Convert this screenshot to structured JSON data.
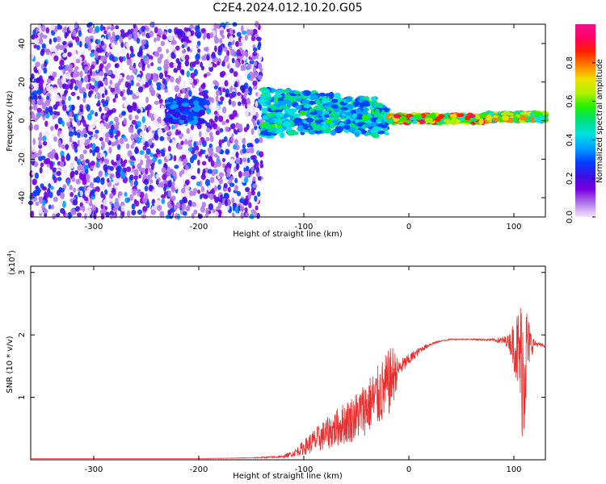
{
  "title": "C2E4.2024.012.10.20.G05",
  "chart_data": [
    {
      "type": "heatmap",
      "xlabel": "Height of straight line (km)",
      "ylabel": "Frequency (Hz)",
      "xlim": [
        -360,
        130
      ],
      "ylim": [
        -50,
        50
      ],
      "xticks": [
        -300,
        -200,
        -100,
        0,
        100
      ],
      "yticks": [
        -40,
        -20,
        0,
        20,
        40
      ],
      "colorbar": {
        "label": "Normalized spectral amplitude",
        "range": [
          0,
          1
        ],
        "ticks": [
          "0.0",
          "0.2",
          "0.4",
          "0.6",
          "0.8"
        ],
        "colormap": [
          "#f4e6fb",
          "#b27ae8",
          "#7a00e0",
          "#3c10e0",
          "#0040ff",
          "#00a0ff",
          "#00e0e0",
          "#00e080",
          "#20f000",
          "#b0f000",
          "#f0e000",
          "#ff8000",
          "#ff2000",
          "#ff0060",
          "#f0108c"
        ]
      },
      "regions": [
        {
          "x": [
            -360,
            -140
          ],
          "freq_range": [
            -50,
            50
          ],
          "amplitude": 0.12,
          "description": "noise"
        },
        {
          "x": [
            -230,
            -195
          ],
          "freq_center": 5,
          "amplitude": 0.35
        },
        {
          "x": [
            -140,
            -20
          ],
          "freq_center": 4,
          "amplitude": 0.5
        },
        {
          "x": [
            -20,
            75
          ],
          "freq_center": 1,
          "amplitude": 0.85
        },
        {
          "x": [
            75,
            130
          ],
          "freq_center": 2,
          "amplitude": 0.75
        }
      ],
      "grid": false
    },
    {
      "type": "line",
      "xlabel": "Height of straight line (km)",
      "ylabel": "SNR (10 * v/v)",
      "y_multiplier": "(x10",
      "y_multiplier_exp": "4",
      "y_multiplier_close": ")",
      "xlim": [
        -360,
        130
      ],
      "ylim": [
        0,
        3.1
      ],
      "xticks": [
        -300,
        -200,
        -100,
        0,
        100
      ],
      "yticks": [
        1,
        2,
        3
      ],
      "color": "#e83030",
      "series": [
        {
          "x": [
            -360,
            -300,
            -250,
            -200,
            -150,
            -120,
            -110,
            -100,
            -90,
            -80,
            -70,
            -60,
            -50,
            -40,
            -30,
            -20,
            -15,
            -10,
            0,
            10,
            20,
            30,
            40,
            60,
            80,
            95,
            100,
            105,
            108,
            110,
            112,
            115,
            120,
            130
          ],
          "values": [
            0.02,
            0.02,
            0.02,
            0.02,
            0.03,
            0.05,
            0.1,
            0.2,
            0.3,
            0.4,
            0.5,
            0.6,
            0.7,
            0.85,
            1.0,
            1.2,
            1.35,
            1.45,
            1.6,
            1.75,
            1.85,
            1.9,
            1.93,
            1.93,
            1.92,
            1.9,
            1.85,
            1.7,
            1.5,
            1.6,
            1.75,
            1.85,
            1.86,
            1.82
          ],
          "noise": [
            0,
            0,
            0,
            0,
            0.005,
            0.02,
            0.05,
            0.12,
            0.2,
            0.25,
            0.3,
            0.35,
            0.4,
            0.45,
            0.5,
            0.55,
            0.5,
            0.15,
            0.1,
            0.05,
            0.03,
            0.01,
            0.01,
            0.01,
            0.02,
            0.1,
            0.4,
            0.8,
            1.2,
            1.3,
            0.8,
            0.3,
            0.05,
            0.02
          ]
        }
      ],
      "grid": false
    }
  ]
}
